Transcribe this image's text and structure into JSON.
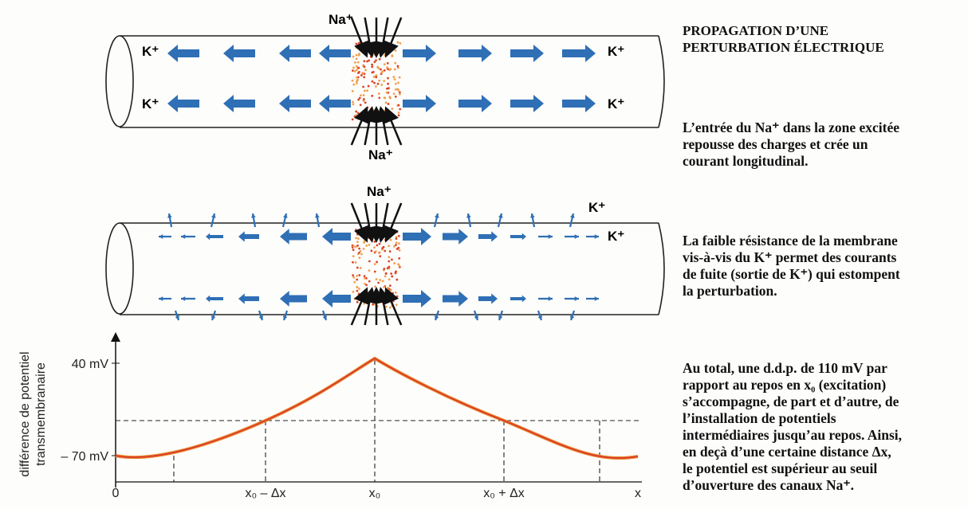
{
  "title": {
    "lines": [
      "PROPAGATION D’UNE",
      "PERTURBATION ÉLECTRIQUE"
    ]
  },
  "paragraphs": [
    {
      "lines": [
        "L’entrée du Na⁺ dans la zone excitée",
        "repousse des charges et crée un",
        "courant longitudinal."
      ]
    },
    {
      "lines": [
        "La faible résistance de la membrane",
        "vis-à-vis du K⁺ permet des courants",
        "de fuite (sortie de K⁺) qui estompent",
        "la perturbation."
      ]
    },
    {
      "lines": [
        "Au total, une d.d.p. de 110 mV par",
        "rapport au repos en x₀ (excitation)",
        "s’accompagne, de part et d’autre, de",
        "l’installation de potentiels",
        "intermédiaires jusqu’au repos. Ainsi,",
        "en deçà d’une certaine distance Δx,",
        "le potentiel est supérieur au seuil",
        "d’ouverture des canaux Na⁺."
      ]
    }
  ],
  "diagram1": {
    "na_top": "Na⁺",
    "na_bottom": "Na⁺",
    "k_labels": [
      "K⁺",
      "K⁺",
      "K⁺",
      "K⁺"
    ]
  },
  "diagram2": {
    "na_top": "Na⁺",
    "k_labels": [
      "K⁺",
      "K⁺"
    ]
  },
  "graph": {
    "y_axis_label": [
      "différence de potentiel",
      "transmembranaire"
    ],
    "y_labels": [
      "40 mV",
      "– 70 mV"
    ],
    "x_labels": [
      "0",
      "x₀ – Δx",
      "x₀",
      "x₀ + Δx",
      "x"
    ]
  }
}
